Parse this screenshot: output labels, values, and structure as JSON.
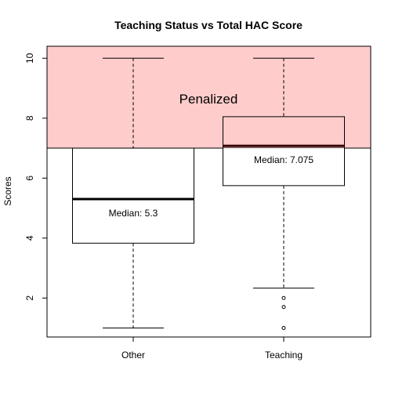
{
  "chart_data": {
    "type": "boxplot",
    "title": "Teaching Status vs Total HAC Score",
    "xlabel": "",
    "ylabel": "Scores",
    "ylim": [
      0.7,
      10.4
    ],
    "yticks": [
      2,
      4,
      6,
      8,
      10
    ],
    "grid": false,
    "categories": [
      "Other",
      "Teaching"
    ],
    "boxes": [
      {
        "category": "Other",
        "whisker_low": 1,
        "q1": 3.83,
        "median": 5.3,
        "q3": 7.0,
        "whisker_high": 10,
        "outliers": [],
        "median_label": "Median:  5.3"
      },
      {
        "category": "Teaching",
        "whisker_low": 2.33,
        "q1": 5.75,
        "median": 7.075,
        "q3": 8.05,
        "whisker_high": 10,
        "outliers": [
          1,
          1.7,
          2
        ],
        "median_label": "Median:  7.075"
      }
    ],
    "penalized_region": {
      "label": "Penalized",
      "threshold": 7.0,
      "color": "#ffcccc"
    }
  }
}
